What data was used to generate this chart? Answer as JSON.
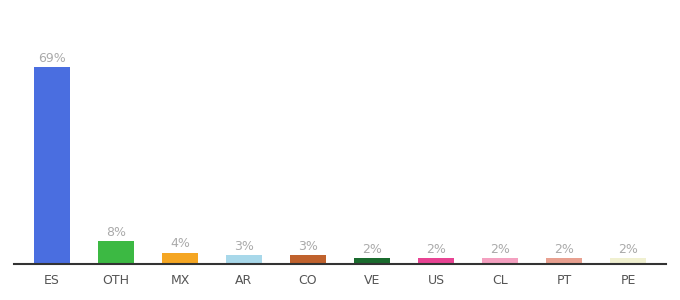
{
  "categories": [
    "ES",
    "OTH",
    "MX",
    "AR",
    "CO",
    "VE",
    "US",
    "CL",
    "PT",
    "PE"
  ],
  "values": [
    69,
    8,
    4,
    3,
    3,
    2,
    2,
    2,
    2,
    2
  ],
  "labels": [
    "69%",
    "8%",
    "4%",
    "3%",
    "3%",
    "2%",
    "2%",
    "2%",
    "2%",
    "2%"
  ],
  "bar_colors": [
    "#4a6ee0",
    "#3cb943",
    "#f5a623",
    "#a8d8ea",
    "#c0622d",
    "#1a6b2e",
    "#e84393",
    "#f4a0c0",
    "#e8a090",
    "#f0f0d0"
  ],
  "label_fontsize": 9,
  "tick_fontsize": 9,
  "bg_color": "#ffffff",
  "ylim": [
    0,
    80
  ],
  "bar_width": 0.55
}
